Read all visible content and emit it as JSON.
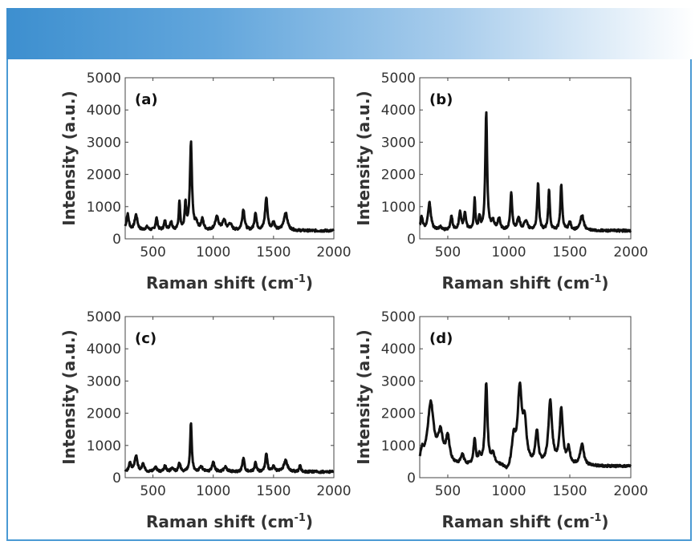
{
  "chart_data": [
    {
      "type": "line",
      "panel_label": "(a)",
      "xlabel": "Raman shift (cm",
      "xlabel_sup": "-1",
      "xlabel_end": ")",
      "ylabel": "Intensity (a.u.)",
      "xlim": [
        270,
        2000
      ],
      "ylim": [
        0,
        5000
      ],
      "xticks": [
        500,
        1000,
        1500,
        2000
      ],
      "yticks": [
        0,
        1000,
        2000,
        3000,
        4000,
        5000
      ],
      "baseline": 250,
      "peaks": [
        [
          290,
          500,
          12
        ],
        [
          360,
          480,
          14
        ],
        [
          450,
          100,
          15
        ],
        [
          530,
          380,
          10
        ],
        [
          600,
          280,
          10
        ],
        [
          650,
          260,
          12
        ],
        [
          720,
          900,
          7
        ],
        [
          770,
          800,
          8
        ],
        [
          815,
          2700,
          10
        ],
        [
          860,
          200,
          15
        ],
        [
          910,
          330,
          12
        ],
        [
          1030,
          400,
          18
        ],
        [
          1090,
          300,
          15
        ],
        [
          1140,
          200,
          15
        ],
        [
          1250,
          650,
          12
        ],
        [
          1350,
          550,
          10
        ],
        [
          1440,
          1000,
          12
        ],
        [
          1500,
          250,
          12
        ],
        [
          1600,
          550,
          18
        ]
      ]
    },
    {
      "type": "line",
      "panel_label": "(b)",
      "xlabel": "Raman shift (cm",
      "xlabel_sup": "-1",
      "xlabel_end": ")",
      "ylabel": "Intensity (a.u.)",
      "xlim": [
        270,
        2000
      ],
      "ylim": [
        0,
        5000
      ],
      "xticks": [
        500,
        1000,
        1500,
        2000
      ],
      "yticks": [
        0,
        1000,
        2000,
        3000,
        4000,
        5000
      ],
      "baseline": 250,
      "peaks": [
        [
          285,
          400,
          12
        ],
        [
          350,
          850,
          14
        ],
        [
          440,
          100,
          15
        ],
        [
          530,
          450,
          10
        ],
        [
          600,
          550,
          10
        ],
        [
          640,
          500,
          12
        ],
        [
          720,
          950,
          7
        ],
        [
          760,
          400,
          8
        ],
        [
          815,
          3650,
          9
        ],
        [
          870,
          250,
          15
        ],
        [
          920,
          350,
          12
        ],
        [
          1020,
          1150,
          9
        ],
        [
          1080,
          350,
          15
        ],
        [
          1140,
          300,
          15
        ],
        [
          1240,
          1450,
          9
        ],
        [
          1330,
          1250,
          8
        ],
        [
          1430,
          1400,
          9
        ],
        [
          1500,
          250,
          12
        ],
        [
          1600,
          480,
          16
        ]
      ]
    },
    {
      "type": "line",
      "panel_label": "(c)",
      "xlabel": "Raman shift (cm",
      "xlabel_sup": "-1",
      "xlabel_end": ")",
      "ylabel": "Intensity (a.u.)",
      "xlim": [
        270,
        2000
      ],
      "ylim": [
        0,
        5000
      ],
      "xticks": [
        500,
        1000,
        1500,
        2000
      ],
      "yticks": [
        0,
        1000,
        2000,
        3000,
        4000,
        5000
      ],
      "baseline": 180,
      "peaks": [
        [
          310,
          250,
          12
        ],
        [
          360,
          480,
          14
        ],
        [
          420,
          250,
          10
        ],
        [
          520,
          150,
          12
        ],
        [
          600,
          200,
          10
        ],
        [
          660,
          120,
          12
        ],
        [
          720,
          250,
          10
        ],
        [
          815,
          1500,
          8
        ],
        [
          900,
          150,
          15
        ],
        [
          1000,
          300,
          12
        ],
        [
          1100,
          150,
          15
        ],
        [
          1250,
          430,
          10
        ],
        [
          1350,
          330,
          8
        ],
        [
          1440,
          550,
          10
        ],
        [
          1500,
          150,
          12
        ],
        [
          1600,
          350,
          18
        ],
        [
          1720,
          200,
          8
        ]
      ]
    },
    {
      "type": "line",
      "panel_label": "(d)",
      "xlabel": "Raman shift (cm",
      "xlabel_sup": "-1",
      "xlabel_end": ")",
      "ylabel": "Intensity (a.u.)",
      "xlim": [
        270,
        2000
      ],
      "ylim": [
        0,
        5000
      ],
      "xticks": [
        500,
        1000,
        1500,
        2000
      ],
      "yticks": [
        0,
        1000,
        2000,
        3000,
        4000,
        5000
      ],
      "baseline": 350,
      "peaks": [
        [
          290,
          350,
          15
        ],
        [
          360,
          1900,
          30
        ],
        [
          440,
          900,
          25
        ],
        [
          500,
          800,
          18
        ],
        [
          620,
          300,
          15
        ],
        [
          720,
          800,
          10
        ],
        [
          760,
          250,
          12
        ],
        [
          815,
          2500,
          12
        ],
        [
          870,
          300,
          18
        ],
        [
          990,
          -250,
          30
        ],
        [
          1040,
          800,
          18
        ],
        [
          1090,
          2300,
          20
        ],
        [
          1130,
          1200,
          18
        ],
        [
          1230,
          1000,
          14
        ],
        [
          1340,
          1950,
          18
        ],
        [
          1430,
          1700,
          16
        ],
        [
          1490,
          500,
          14
        ],
        [
          1600,
          650,
          18
        ]
      ]
    }
  ]
}
